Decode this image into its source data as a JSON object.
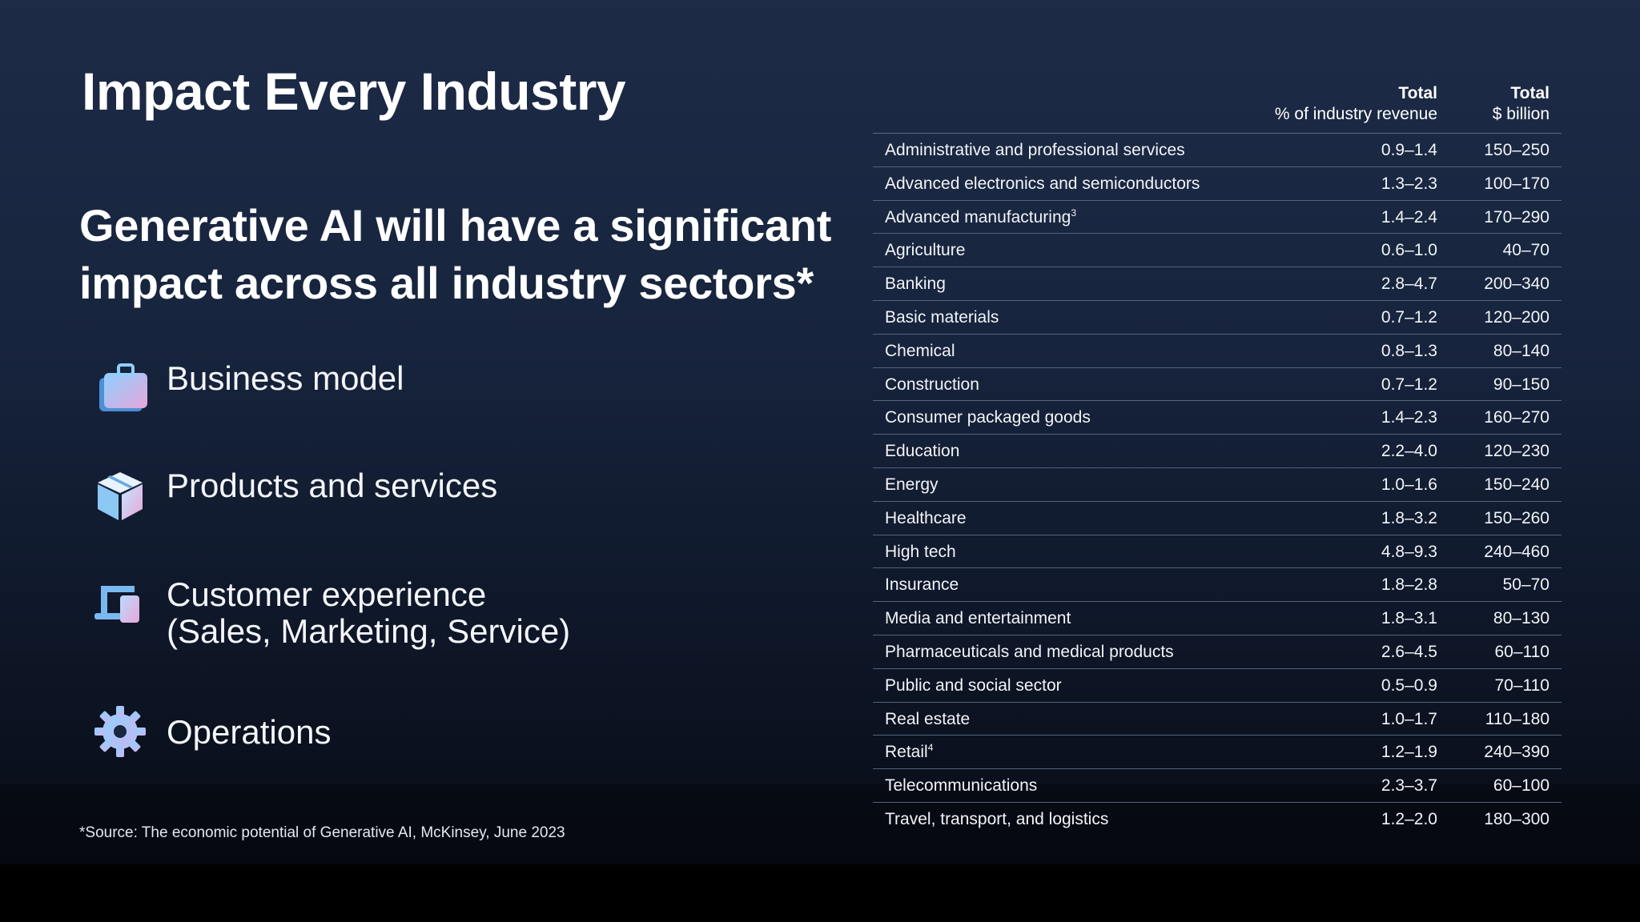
{
  "slide": {
    "title": "Impact Every Industry",
    "subtitle": "Generative AI will have a significant impact across all industry sectors*",
    "features": [
      {
        "label": "Business model",
        "icon": "briefcase-icon"
      },
      {
        "label": "Products and services",
        "icon": "box-icon"
      },
      {
        "label": "Customer experience\n(Sales, Marketing, Service)",
        "icon": "devices-icon"
      },
      {
        "label": "Operations",
        "icon": "gear-icon"
      }
    ],
    "source": "*Source: The economic potential of Generative AI, McKinsey, June 2023"
  },
  "table": {
    "headers": [
      {
        "title": "Total",
        "sub": "% of industry revenue"
      },
      {
        "title": "Total",
        "sub": "$ billion"
      }
    ],
    "rows": [
      {
        "name": "Administrative and professional services",
        "sup": "",
        "pct": "0.9–1.4",
        "bil": "150–250"
      },
      {
        "name": "Advanced electronics and semiconductors",
        "sup": "",
        "pct": "1.3–2.3",
        "bil": "100–170"
      },
      {
        "name": "Advanced manufacturing",
        "sup": "3",
        "pct": "1.4–2.4",
        "bil": "170–290"
      },
      {
        "name": "Agriculture",
        "sup": "",
        "pct": "0.6–1.0",
        "bil": "40–70"
      },
      {
        "name": "Banking",
        "sup": "",
        "pct": "2.8–4.7",
        "bil": "200–340"
      },
      {
        "name": "Basic materials",
        "sup": "",
        "pct": "0.7–1.2",
        "bil": "120–200"
      },
      {
        "name": "Chemical",
        "sup": "",
        "pct": "0.8–1.3",
        "bil": "80–140"
      },
      {
        "name": "Construction",
        "sup": "",
        "pct": "0.7–1.2",
        "bil": "90–150"
      },
      {
        "name": "Consumer packaged goods",
        "sup": "",
        "pct": "1.4–2.3",
        "bil": "160–270"
      },
      {
        "name": "Education",
        "sup": "",
        "pct": "2.2–4.0",
        "bil": "120–230"
      },
      {
        "name": "Energy",
        "sup": "",
        "pct": "1.0–1.6",
        "bil": "150–240"
      },
      {
        "name": "Healthcare",
        "sup": "",
        "pct": "1.8–3.2",
        "bil": "150–260"
      },
      {
        "name": "High tech",
        "sup": "",
        "pct": "4.8–9.3",
        "bil": "240–460"
      },
      {
        "name": "Insurance",
        "sup": "",
        "pct": "1.8–2.8",
        "bil": "50–70"
      },
      {
        "name": "Media and entertainment",
        "sup": "",
        "pct": "1.8–3.1",
        "bil": "80–130"
      },
      {
        "name": "Pharmaceuticals and medical products",
        "sup": "",
        "pct": "2.6–4.5",
        "bil": "60–110"
      },
      {
        "name": "Public and social sector",
        "sup": "",
        "pct": "0.5–0.9",
        "bil": "70–110"
      },
      {
        "name": "Real estate",
        "sup": "",
        "pct": "1.0–1.7",
        "bil": "110–180"
      },
      {
        "name": "Retail",
        "sup": "4",
        "pct": "1.2–1.9",
        "bil": "240–390"
      },
      {
        "name": "Telecommunications",
        "sup": "",
        "pct": "2.3–3.7",
        "bil": "60–100"
      },
      {
        "name": "Travel, transport, and logistics",
        "sup": "",
        "pct": "1.2–2.0",
        "bil": "180–300"
      }
    ]
  },
  "colors": {
    "icon_blue": "#7ab8f0",
    "icon_pink": "#e9a6d8",
    "divider": "#56627a"
  }
}
